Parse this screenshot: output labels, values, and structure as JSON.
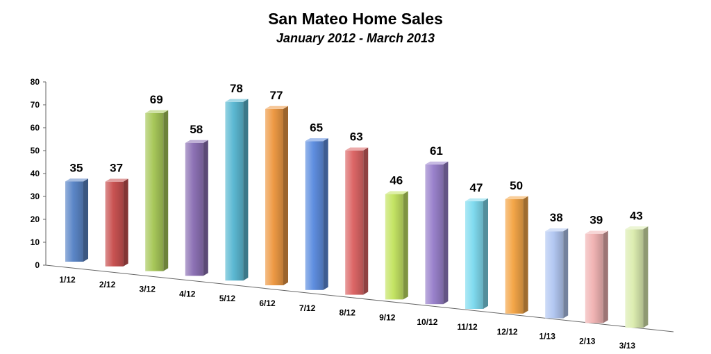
{
  "chart_data": {
    "type": "bar",
    "title": "San Mateo Home Sales",
    "subtitle": "January 2012 - March 2013",
    "xlabel": "",
    "ylabel": "",
    "ylim": [
      0,
      80
    ],
    "yticks": [
      0,
      10,
      20,
      30,
      40,
      50,
      60,
      70,
      80
    ],
    "categories": [
      "1/12",
      "2/12",
      "3/12",
      "4/12",
      "5/12",
      "6/12",
      "7/12",
      "8/12",
      "9/12",
      "10/12",
      "11/12",
      "12/12",
      "1/13",
      "2/13",
      "3/13"
    ],
    "values": [
      35,
      37,
      69,
      58,
      78,
      77,
      65,
      63,
      46,
      61,
      47,
      50,
      38,
      39,
      43
    ],
    "colors": [
      "#5b86c7",
      "#c95352",
      "#a8c85a",
      "#8d72b5",
      "#5cb9d3",
      "#ee9a45",
      "#5f8fe0",
      "#dc6666",
      "#c4e464",
      "#9a82cc",
      "#80dbef",
      "#f4a648",
      "#b3c8f2",
      "#f1b4b4",
      "#dcecb0"
    ],
    "grid": false,
    "legend": "none"
  }
}
